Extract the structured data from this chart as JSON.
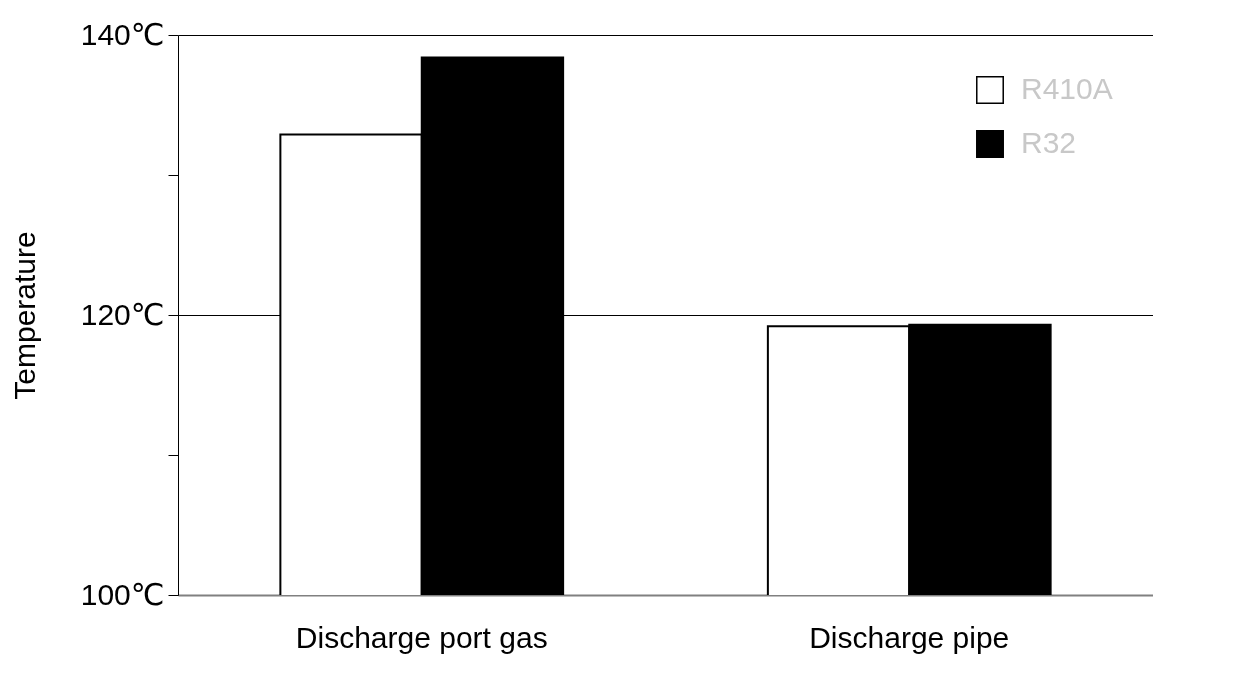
{
  "chart_data": {
    "type": "bar",
    "ylabel": "Temperature",
    "categories": [
      "Discharge port gas",
      "Discharge pipe"
    ],
    "series": [
      {
        "name": "R410A",
        "color": "#ffffff",
        "values": [
          132.9,
          119.2
        ]
      },
      {
        "name": "R32",
        "color": "#000000",
        "values": [
          138.4,
          119.3
        ]
      }
    ],
    "ylim": [
      100,
      140
    ],
    "yticks": [
      {
        "value": 100,
        "label": "100℃"
      },
      {
        "value": 110,
        "label": null
      },
      {
        "value": 120,
        "label": "120℃"
      },
      {
        "value": 130,
        "label": null
      },
      {
        "value": 140,
        "label": "140℃"
      }
    ],
    "grid": "y",
    "legend": "top right"
  }
}
